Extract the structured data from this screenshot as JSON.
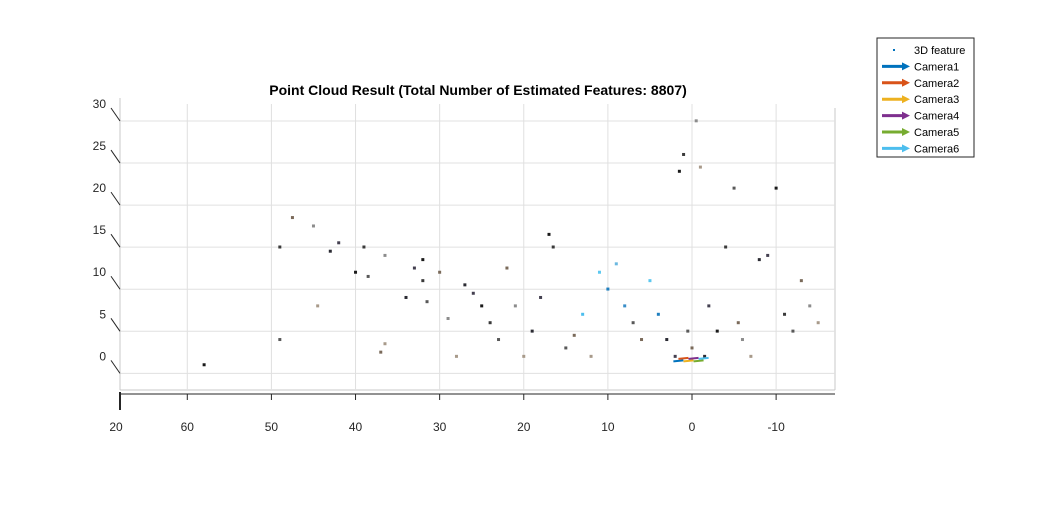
{
  "chart_data": {
    "type": "scatter",
    "title": "Point Cloud Result (Total Number of Estimated Features: 8807)",
    "xlabel": "",
    "ylabel": "",
    "x_ticks": [
      60,
      50,
      40,
      30,
      20,
      10,
      0,
      -10
    ],
    "x_corner_tick": "20",
    "z_ticks": [
      0,
      5,
      10,
      15,
      20,
      25,
      30
    ],
    "xlim": [
      68,
      -17
    ],
    "zlim": [
      -4,
      30
    ],
    "grid": true,
    "legend_position": "top-right-outside",
    "legend": [
      {
        "label": "3D feature",
        "marker": "dot",
        "color": "#0072BD"
      },
      {
        "label": "Camera1",
        "marker": "arrow",
        "color": "#0072BD"
      },
      {
        "label": "Camera2",
        "marker": "arrow",
        "color": "#D95319"
      },
      {
        "label": "Camera3",
        "marker": "arrow",
        "color": "#EDB120"
      },
      {
        "label": "Camera4",
        "marker": "arrow",
        "color": "#7E2F8E"
      },
      {
        "label": "Camera5",
        "marker": "arrow",
        "color": "#77AC30"
      },
      {
        "label": "Camera6",
        "marker": "arrow",
        "color": "#4DBEEE"
      }
    ],
    "series": [
      {
        "name": "3D feature",
        "points": [
          [
            58,
            -1
          ],
          [
            49,
            13
          ],
          [
            49,
            2
          ],
          [
            47.5,
            16.5
          ],
          [
            45,
            15.5
          ],
          [
            44.5,
            6
          ],
          [
            43,
            12.5
          ],
          [
            42,
            13.5
          ],
          [
            40,
            10
          ],
          [
            39,
            13
          ],
          [
            38.5,
            9.5
          ],
          [
            37,
            0.5
          ],
          [
            36.5,
            12
          ],
          [
            36.5,
            1.5
          ],
          [
            34,
            7
          ],
          [
            33,
            10.5
          ],
          [
            32,
            11.5
          ],
          [
            32,
            9
          ],
          [
            31.5,
            6.5
          ],
          [
            30,
            10
          ],
          [
            29,
            4.5
          ],
          [
            28,
            0
          ],
          [
            27,
            8.5
          ],
          [
            26,
            7.5
          ],
          [
            25,
            6
          ],
          [
            24,
            4
          ],
          [
            23,
            2
          ],
          [
            22,
            10.5
          ],
          [
            21,
            6
          ],
          [
            20,
            0
          ],
          [
            19,
            3
          ],
          [
            18,
            7
          ],
          [
            17,
            14.5
          ],
          [
            16.5,
            13
          ],
          [
            15,
            1
          ],
          [
            14,
            2.5
          ],
          [
            13,
            5
          ],
          [
            12,
            0
          ],
          [
            11,
            10
          ],
          [
            10,
            8
          ],
          [
            9,
            11
          ],
          [
            8,
            6
          ],
          [
            7,
            4
          ],
          [
            6,
            2
          ],
          [
            5,
            9
          ],
          [
            4,
            5
          ],
          [
            3,
            2
          ],
          [
            2,
            0
          ],
          [
            1.5,
            22
          ],
          [
            1,
            24
          ],
          [
            0.5,
            3
          ],
          [
            0,
            1
          ],
          [
            -0.5,
            28
          ],
          [
            -1,
            22.5
          ],
          [
            -1.5,
            0
          ],
          [
            -2,
            6
          ],
          [
            -3,
            3
          ],
          [
            -4,
            13
          ],
          [
            -5,
            20
          ],
          [
            -5.5,
            4
          ],
          [
            -6,
            2
          ],
          [
            -7,
            0
          ],
          [
            -8,
            11.5
          ],
          [
            -9,
            12
          ],
          [
            -10,
            20
          ],
          [
            -11,
            5
          ],
          [
            -12,
            3
          ],
          [
            -13,
            9
          ],
          [
            -14,
            6
          ],
          [
            -15,
            4
          ]
        ]
      }
    ]
  }
}
